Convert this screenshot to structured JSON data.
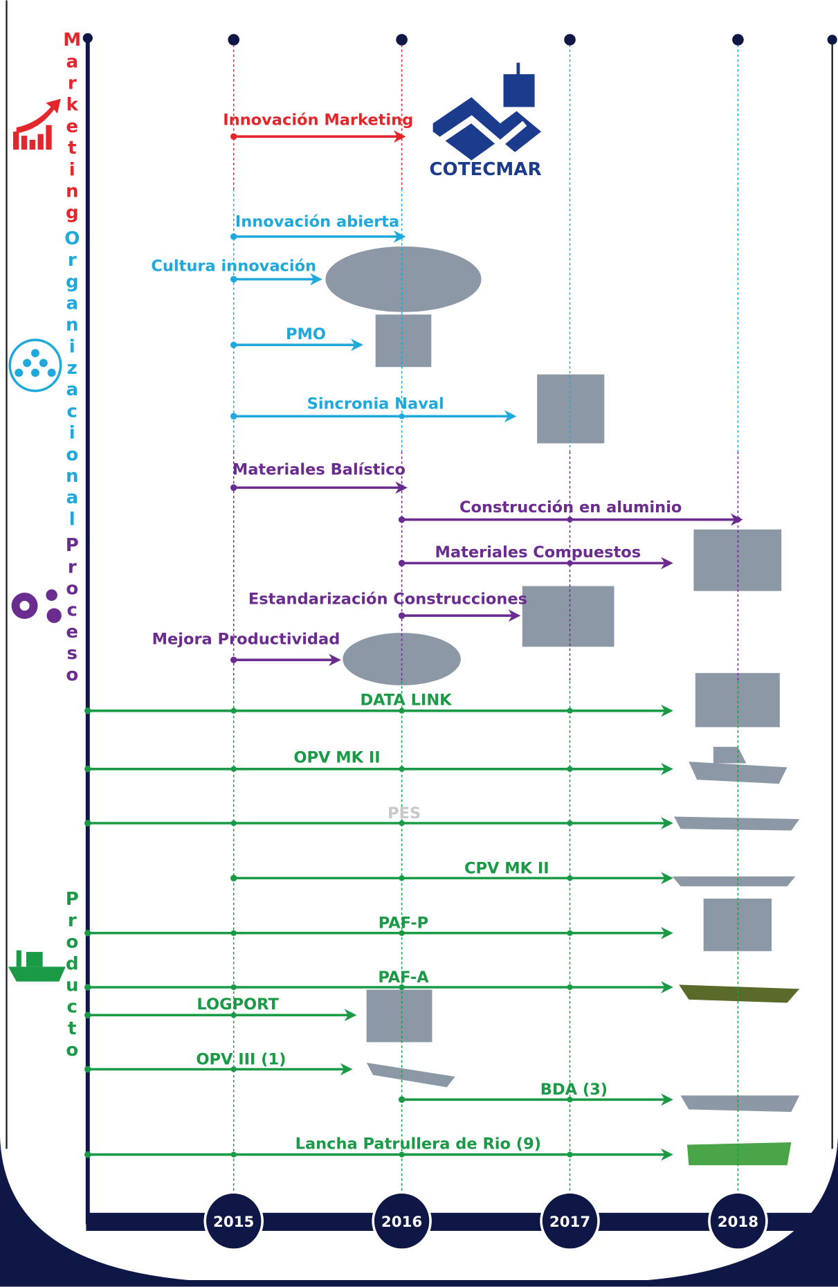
{
  "logo": "COTECMAR",
  "years": [
    "2015",
    "2016",
    "2017",
    "2018"
  ],
  "sections": [
    {
      "label": "Marketing",
      "items": [
        {
          "label": "Innovación Marketing"
        }
      ]
    },
    {
      "label": "Organizacional",
      "items": [
        {
          "label": "Innovación abierta"
        },
        {
          "label": "Cultura innovación"
        },
        {
          "label": "PMO"
        },
        {
          "label": "Sincronia Naval"
        }
      ]
    },
    {
      "label": "Proceso",
      "items": [
        {
          "label": "Materiales Balístico"
        },
        {
          "label": "Construcción en aluminio"
        },
        {
          "label": "Materiales Compuestos"
        },
        {
          "label": "Estandarización Construcciones"
        },
        {
          "label": "Mejora Productividad"
        }
      ]
    },
    {
      "label": "Producto",
      "items": [
        {
          "label": "DATA LINK"
        },
        {
          "label": "OPV MK II"
        },
        {
          "label": "PES"
        },
        {
          "label": "CPV MK II"
        },
        {
          "label": "PAF-P"
        },
        {
          "label": "PAF-A"
        },
        {
          "label": "LOGPORT"
        },
        {
          "label": "OPV III (1)"
        },
        {
          "label": "BDA (3)"
        },
        {
          "label": "Lancha Patrullera de Rio (9)"
        }
      ]
    }
  ]
}
